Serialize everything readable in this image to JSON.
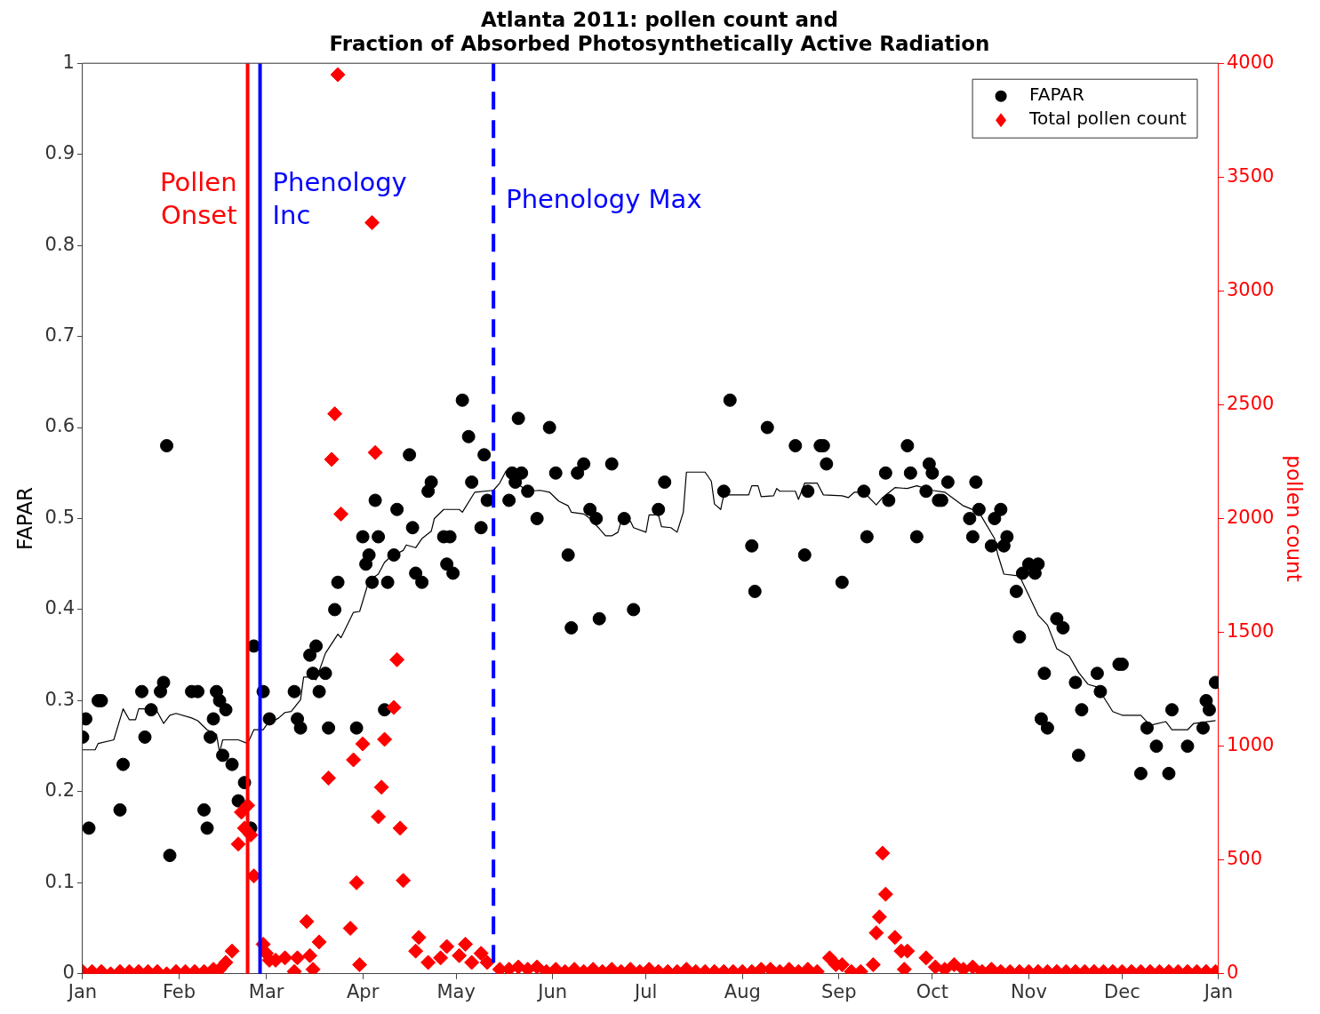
{
  "chart_data": {
    "type": "scatter",
    "title": "Atlanta 2011: pollen count and\nFraction of Absorbed Photosynthetically Active Radiation",
    "ylabel": "FAPAR",
    "y2label": "pollen count",
    "xlim": [
      "2011-01-01",
      "2012-01-01"
    ],
    "xticks": [
      {
        "value": "2011-01-01",
        "label": "Jan"
      },
      {
        "value": "2011-02-01",
        "label": "Feb"
      },
      {
        "value": "2011-03-01",
        "label": "Mar"
      },
      {
        "value": "2011-04-01",
        "label": "Apr"
      },
      {
        "value": "2011-05-01",
        "label": "May"
      },
      {
        "value": "2011-06-01",
        "label": "Jun"
      },
      {
        "value": "2011-07-01",
        "label": "Jul"
      },
      {
        "value": "2011-08-01",
        "label": "Aug"
      },
      {
        "value": "2011-09-01",
        "label": "Sep"
      },
      {
        "value": "2011-10-01",
        "label": "Oct"
      },
      {
        "value": "2011-11-01",
        "label": "Nov"
      },
      {
        "value": "2011-12-01",
        "label": "Dec"
      },
      {
        "value": "2012-01-01",
        "label": "Jan"
      }
    ],
    "ylim": [
      0,
      1
    ],
    "yticks": [
      0,
      0.1,
      0.2,
      0.3,
      0.4,
      0.5,
      0.6,
      0.7,
      0.8,
      0.9,
      1
    ],
    "y2lim": [
      0,
      4000
    ],
    "y2ticks": [
      0,
      500,
      1000,
      1500,
      2000,
      2500,
      3000,
      3500,
      4000
    ],
    "legend": "top right",
    "series": [
      {
        "name": "FAPAR",
        "type": "scatter",
        "marker": "circle",
        "color": "#000000",
        "x": [
          "2011-01-01",
          "2011-01-02",
          "2011-01-03",
          "2011-01-06",
          "2011-01-07",
          "2011-01-13",
          "2011-01-14",
          "2011-01-20",
          "2011-01-21",
          "2011-01-23",
          "2011-01-26",
          "2011-01-27",
          "2011-01-28",
          "2011-01-29",
          "2011-02-05",
          "2011-02-07",
          "2011-02-09",
          "2011-02-10",
          "2011-02-11",
          "2011-02-12",
          "2011-02-13",
          "2011-02-14",
          "2011-02-15",
          "2011-02-16",
          "2011-02-18",
          "2011-02-20",
          "2011-02-22",
          "2011-02-24",
          "2011-02-25",
          "2011-02-28",
          "2011-03-02",
          "2011-03-10",
          "2011-03-11",
          "2011-03-12",
          "2011-03-15",
          "2011-03-16",
          "2011-03-17",
          "2011-03-18",
          "2011-03-20",
          "2011-03-21",
          "2011-03-23",
          "2011-03-24",
          "2011-03-30",
          "2011-04-01",
          "2011-04-02",
          "2011-04-03",
          "2011-04-04",
          "2011-04-05",
          "2011-04-06",
          "2011-04-08",
          "2011-04-09",
          "2011-04-11",
          "2011-04-12",
          "2011-04-16",
          "2011-04-17",
          "2011-04-18",
          "2011-04-20",
          "2011-04-22",
          "2011-04-23",
          "2011-04-27",
          "2011-04-28",
          "2011-04-29",
          "2011-04-30",
          "2011-05-03",
          "2011-05-05",
          "2011-05-06",
          "2011-05-09",
          "2011-05-10",
          "2011-05-11",
          "2011-05-18",
          "2011-05-19",
          "2011-05-20",
          "2011-05-21",
          "2011-05-22",
          "2011-05-24",
          "2011-05-27",
          "2011-05-31",
          "2011-06-02",
          "2011-06-06",
          "2011-06-07",
          "2011-06-09",
          "2011-06-11",
          "2011-06-13",
          "2011-06-15",
          "2011-06-16",
          "2011-06-20",
          "2011-06-24",
          "2011-06-27",
          "2011-07-05",
          "2011-07-07",
          "2011-07-26",
          "2011-07-28",
          "2011-08-04",
          "2011-08-05",
          "2011-08-09",
          "2011-08-18",
          "2011-08-21",
          "2011-08-22",
          "2011-08-26",
          "2011-08-27",
          "2011-08-28",
          "2011-09-02",
          "2011-09-09",
          "2011-09-10",
          "2011-09-16",
          "2011-09-17",
          "2011-09-23",
          "2011-09-24",
          "2011-09-26",
          "2011-09-29",
          "2011-09-30",
          "2011-10-01",
          "2011-10-03",
          "2011-10-04",
          "2011-10-06",
          "2011-10-13",
          "2011-10-14",
          "2011-10-15",
          "2011-10-16",
          "2011-10-20",
          "2011-10-21",
          "2011-10-23",
          "2011-10-24",
          "2011-10-25",
          "2011-10-28",
          "2011-10-29",
          "2011-10-30",
          "2011-11-01",
          "2011-11-03",
          "2011-11-04",
          "2011-11-05",
          "2011-11-06",
          "2011-11-07",
          "2011-11-10",
          "2011-11-12",
          "2011-11-16",
          "2011-11-17",
          "2011-11-18",
          "2011-11-23",
          "2011-11-24",
          "2011-11-30",
          "2011-12-01",
          "2011-12-07",
          "2011-12-09",
          "2011-12-12",
          "2011-12-16",
          "2011-12-17",
          "2011-12-22",
          "2011-12-27",
          "2011-12-28",
          "2011-12-29",
          "2011-12-31"
        ],
        "values": [
          0.26,
          0.28,
          0.16,
          0.3,
          0.3,
          0.18,
          0.23,
          0.31,
          0.26,
          0.29,
          0.31,
          0.32,
          0.58,
          0.13,
          0.31,
          0.31,
          0.18,
          0.16,
          0.26,
          0.28,
          0.31,
          0.3,
          0.24,
          0.29,
          0.23,
          0.19,
          0.21,
          0.16,
          0.36,
          0.31,
          0.28,
          0.31,
          0.28,
          0.27,
          0.35,
          0.33,
          0.36,
          0.31,
          0.33,
          0.27,
          0.4,
          0.43,
          0.27,
          0.48,
          0.45,
          0.46,
          0.43,
          0.52,
          0.48,
          0.29,
          0.43,
          0.46,
          0.51,
          0.57,
          0.49,
          0.44,
          0.43,
          0.53,
          0.54,
          0.48,
          0.45,
          0.48,
          0.44,
          0.63,
          0.59,
          0.54,
          0.49,
          0.57,
          0.52,
          0.52,
          0.55,
          0.54,
          0.61,
          0.55,
          0.53,
          0.5,
          0.6,
          0.55,
          0.46,
          0.38,
          0.55,
          0.56,
          0.51,
          0.5,
          0.39,
          0.56,
          0.5,
          0.4,
          0.51,
          0.54,
          0.53,
          0.63,
          0.47,
          0.42,
          0.6,
          0.58,
          0.46,
          0.53,
          0.58,
          0.58,
          0.56,
          0.43,
          0.53,
          0.48,
          0.55,
          0.52,
          0.58,
          0.55,
          0.48,
          0.53,
          0.56,
          0.55,
          0.52,
          0.52,
          0.54,
          0.5,
          0.48,
          0.54,
          0.51,
          0.47,
          0.5,
          0.51,
          0.47,
          0.48,
          0.42,
          0.37,
          0.44,
          0.45,
          0.44,
          0.45,
          0.28,
          0.33,
          0.27,
          0.39,
          0.38,
          0.32,
          0.24,
          0.29,
          0.33,
          0.31,
          0.34,
          0.34,
          0.22,
          0.27,
          0.25,
          0.22,
          0.29,
          0.25,
          0.27,
          0.3,
          0.29,
          0.32
        ]
      },
      {
        "type": "line",
        "marker": "none",
        "color": "#000000",
        "x": [
          "2011-01-01",
          "2011-01-05",
          "2011-01-06",
          "2011-01-11",
          "2011-01-14",
          "2011-01-16",
          "2011-01-18",
          "2011-01-19",
          "2011-01-22",
          "2011-01-24",
          "2011-01-27",
          "2011-01-29",
          "2011-01-31",
          "2011-02-05",
          "2011-02-07",
          "2011-02-10",
          "2011-02-13",
          "2011-02-14",
          "2011-02-15",
          "2011-02-20",
          "2011-02-23",
          "2011-02-25",
          "2011-02-28",
          "2011-03-01",
          "2011-03-05",
          "2011-03-07",
          "2011-03-09",
          "2011-03-12",
          "2011-03-13",
          "2011-03-15",
          "2011-03-17",
          "2011-03-20",
          "2011-03-24",
          "2011-03-25",
          "2011-03-29",
          "2011-03-31",
          "2011-04-03",
          "2011-04-06",
          "2011-04-08",
          "2011-04-10",
          "2011-04-14",
          "2011-04-15",
          "2011-04-18",
          "2011-04-20",
          "2011-04-23",
          "2011-04-24",
          "2011-04-27",
          "2011-05-02",
          "2011-05-03",
          "2011-05-07",
          "2011-05-13",
          "2011-05-15",
          "2011-05-17",
          "2011-05-20",
          "2011-05-24",
          "2011-05-28",
          "2011-05-31",
          "2011-06-03",
          "2011-06-06",
          "2011-06-07",
          "2011-06-11",
          "2011-06-13",
          "2011-06-16",
          "2011-06-18",
          "2011-06-20",
          "2011-06-22",
          "2011-06-23",
          "2011-06-26",
          "2011-06-27",
          "2011-07-01",
          "2011-07-02",
          "2011-07-05",
          "2011-07-06",
          "2011-07-09",
          "2011-07-11",
          "2011-07-13",
          "2011-07-14",
          "2011-07-20",
          "2011-07-22",
          "2011-07-23",
          "2011-07-25",
          "2011-07-26",
          "2011-08-03",
          "2011-08-04",
          "2011-08-06",
          "2011-08-07",
          "2011-08-11",
          "2011-08-12",
          "2011-08-13",
          "2011-08-18",
          "2011-08-19",
          "2011-08-21",
          "2011-08-25",
          "2011-08-27",
          "2011-09-02",
          "2011-09-04",
          "2011-09-06",
          "2011-09-09",
          "2011-09-13",
          "2011-09-15",
          "2011-09-19",
          "2011-09-23",
          "2011-09-26",
          "2011-10-01",
          "2011-10-05",
          "2011-10-11",
          "2011-10-16",
          "2011-10-21",
          "2011-10-22",
          "2011-10-24",
          "2011-10-29",
          "2011-11-04",
          "2011-11-07",
          "2011-11-10",
          "2011-11-14",
          "2011-11-17",
          "2011-11-20",
          "2011-11-23",
          "2011-11-28",
          "2011-12-01",
          "2011-12-07",
          "2011-12-10",
          "2011-12-15",
          "2011-12-17",
          "2011-12-22",
          "2011-12-24",
          "2011-12-31"
        ],
        "values": [
          0.246,
          0.246,
          0.253,
          0.257,
          0.291,
          0.279,
          0.279,
          0.291,
          0.291,
          0.294,
          0.275,
          0.284,
          0.286,
          0.281,
          0.278,
          0.268,
          0.263,
          0.243,
          0.257,
          0.257,
          0.253,
          0.268,
          0.268,
          0.273,
          0.281,
          0.287,
          0.288,
          0.301,
          0.326,
          0.326,
          0.323,
          0.352,
          0.373,
          0.369,
          0.397,
          0.398,
          0.432,
          0.439,
          0.452,
          0.458,
          0.465,
          0.471,
          0.468,
          0.478,
          0.486,
          0.5,
          0.51,
          0.51,
          0.507,
          0.529,
          0.531,
          0.539,
          0.552,
          0.54,
          0.53,
          0.531,
          0.529,
          0.519,
          0.514,
          0.507,
          0.505,
          0.5,
          0.489,
          0.481,
          0.481,
          0.485,
          0.497,
          0.497,
          0.49,
          0.485,
          0.504,
          0.504,
          0.491,
          0.49,
          0.485,
          0.507,
          0.551,
          0.551,
          0.541,
          0.516,
          0.51,
          0.526,
          0.526,
          0.536,
          0.536,
          0.524,
          0.525,
          0.533,
          0.53,
          0.53,
          0.521,
          0.539,
          0.539,
          0.526,
          0.525,
          0.523,
          0.529,
          0.529,
          0.515,
          0.523,
          0.534,
          0.533,
          0.536,
          0.531,
          0.529,
          0.514,
          0.507,
          0.478,
          0.461,
          0.439,
          0.437,
          0.394,
          0.383,
          0.357,
          0.349,
          0.331,
          0.318,
          0.315,
          0.288,
          0.284,
          0.284,
          0.273,
          0.277,
          0.268,
          0.268,
          0.275,
          0.278
        ]
      },
      {
        "name": "Total pollen count",
        "type": "scatter",
        "marker": "diamond",
        "axis": "y2",
        "color": "#ff0000",
        "x": [
          "2011-01-01",
          "2011-01-04",
          "2011-01-07",
          "2011-01-10",
          "2011-01-13",
          "2011-01-16",
          "2011-01-19",
          "2011-01-22",
          "2011-01-25",
          "2011-01-28",
          "2011-01-31",
          "2011-02-03",
          "2011-02-06",
          "2011-02-09",
          "2011-02-12",
          "2011-02-14",
          "2011-02-16",
          "2011-02-18",
          "2011-02-20",
          "2011-02-21",
          "2011-02-22",
          "2011-02-23",
          "2011-02-24",
          "2011-02-25",
          "2011-02-28",
          "2011-03-01",
          "2011-03-02",
          "2011-03-04",
          "2011-03-07",
          "2011-03-10",
          "2011-03-11",
          "2011-03-14",
          "2011-03-15",
          "2011-03-16",
          "2011-03-18",
          "2011-03-21",
          "2011-03-22",
          "2011-03-23",
          "2011-03-24",
          "2011-03-25",
          "2011-03-28",
          "2011-03-29",
          "2011-03-30",
          "2011-03-31",
          "2011-04-01",
          "2011-04-04",
          "2011-04-05",
          "2011-04-06",
          "2011-04-07",
          "2011-04-08",
          "2011-04-11",
          "2011-04-12",
          "2011-04-13",
          "2011-04-14",
          "2011-04-18",
          "2011-04-19",
          "2011-04-22",
          "2011-04-26",
          "2011-04-28",
          "2011-05-02",
          "2011-05-04",
          "2011-05-06",
          "2011-05-09",
          "2011-05-11",
          "2011-05-15",
          "2011-05-18",
          "2011-05-21",
          "2011-05-24",
          "2011-05-27",
          "2011-05-30",
          "2011-06-02",
          "2011-06-05",
          "2011-06-08",
          "2011-06-11",
          "2011-06-14",
          "2011-06-17",
          "2011-06-20",
          "2011-06-23",
          "2011-06-26",
          "2011-06-29",
          "2011-07-02",
          "2011-07-05",
          "2011-07-08",
          "2011-07-11",
          "2011-07-14",
          "2011-07-17",
          "2011-07-20",
          "2011-07-23",
          "2011-07-26",
          "2011-07-29",
          "2011-08-01",
          "2011-08-04",
          "2011-08-07",
          "2011-08-10",
          "2011-08-13",
          "2011-08-16",
          "2011-08-19",
          "2011-08-22",
          "2011-08-25",
          "2011-08-29",
          "2011-08-31",
          "2011-09-02",
          "2011-09-05",
          "2011-09-08",
          "2011-09-12",
          "2011-09-13",
          "2011-09-14",
          "2011-09-15",
          "2011-09-16",
          "2011-09-19",
          "2011-09-21",
          "2011-09-22",
          "2011-09-23",
          "2011-09-29",
          "2011-10-02",
          "2011-10-05",
          "2011-10-08",
          "2011-10-11",
          "2011-10-14",
          "2011-10-17",
          "2011-10-20",
          "2011-10-23",
          "2011-10-26",
          "2011-10-29",
          "2011-11-01",
          "2011-11-04",
          "2011-11-07",
          "2011-11-10",
          "2011-11-13",
          "2011-11-16",
          "2011-11-19",
          "2011-11-22",
          "2011-11-25",
          "2011-11-28",
          "2011-12-01",
          "2011-12-04",
          "2011-12-07",
          "2011-12-10",
          "2011-12-13",
          "2011-12-16",
          "2011-12-19",
          "2011-12-22",
          "2011-12-25",
          "2011-12-28",
          "2011-12-31"
        ],
        "values": [
          10,
          10,
          10,
          0,
          10,
          10,
          10,
          10,
          10,
          0,
          10,
          10,
          10,
          10,
          20,
          20,
          50,
          100,
          570,
          710,
          640,
          740,
          610,
          430,
          130,
          90,
          60,
          60,
          70,
          10,
          70,
          230,
          80,
          20,
          140,
          860,
          2260,
          2460,
          3950,
          2020,
          200,
          940,
          400,
          40,
          1010,
          3300,
          2290,
          690,
          820,
          1030,
          1170,
          1380,
          640,
          410,
          100,
          160,
          50,
          70,
          120,
          80,
          130,
          50,
          90,
          50,
          20,
          20,
          30,
          20,
          30,
          10,
          20,
          10,
          20,
          10,
          20,
          10,
          20,
          10,
          20,
          10,
          20,
          10,
          10,
          10,
          20,
          10,
          10,
          10,
          10,
          10,
          10,
          10,
          20,
          20,
          10,
          20,
          10,
          20,
          10,
          70,
          40,
          40,
          10,
          10,
          40,
          180,
          250,
          530,
          350,
          160,
          100,
          20,
          100,
          70,
          30,
          20,
          40,
          20,
          30,
          10,
          20,
          10,
          10,
          10,
          10,
          10,
          10,
          10,
          10,
          10,
          10,
          10,
          10,
          10,
          10,
          10,
          10,
          10,
          10,
          10,
          10,
          10,
          10,
          10,
          10
        ]
      }
    ],
    "ref_lines": [
      {
        "axis": "x",
        "value": "2011-02-23",
        "label": "Pollen\nOnset",
        "color": "#ff0000",
        "line_style": "solid"
      },
      {
        "axis": "x",
        "value": "2011-02-27",
        "label": "Phenology\nInc",
        "color": "#0000ff",
        "line_style": "solid"
      },
      {
        "axis": "x",
        "value": "2011-05-13",
        "label": "Phenology Max",
        "color": "#0000ff",
        "line_style": "dashed"
      }
    ]
  }
}
